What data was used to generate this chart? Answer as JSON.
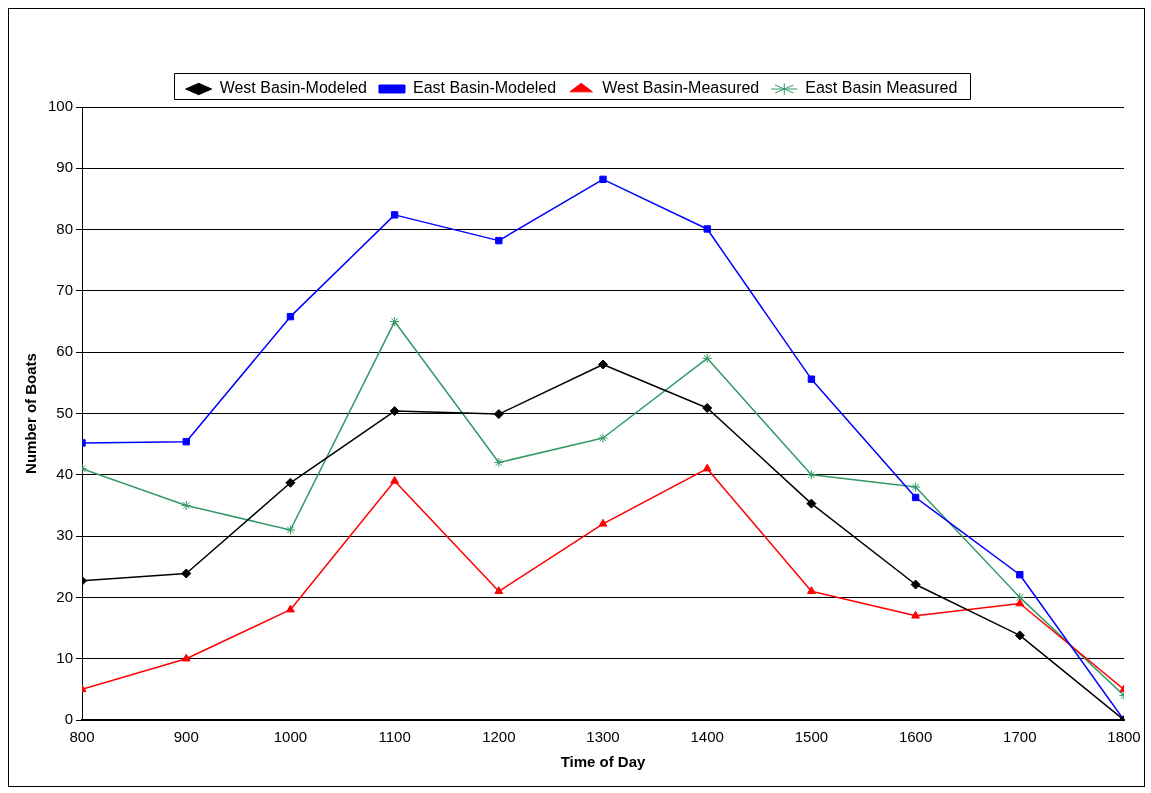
{
  "chart_data": {
    "type": "line",
    "xlabel": "Time of Day",
    "ylabel": "Number of Boats",
    "x": [
      800,
      900,
      1000,
      1100,
      1200,
      1300,
      1400,
      1500,
      1600,
      1700,
      1800
    ],
    "xlim": [
      800,
      1800
    ],
    "xticks": [
      800,
      900,
      1000,
      1100,
      1200,
      1300,
      1400,
      1500,
      1600,
      1700,
      1800
    ],
    "ylim": [
      0,
      100
    ],
    "yticks": [
      0,
      10,
      20,
      30,
      40,
      50,
      60,
      70,
      80,
      90,
      100
    ],
    "grid": "y",
    "legend": "top",
    "series": [
      {
        "name": "West Basin-Modeled",
        "color": "#000000",
        "marker": "diamond",
        "values": [
          22.7,
          23.9,
          38.7,
          50.4,
          49.9,
          58,
          50.9,
          35.3,
          22.1,
          13.8,
          0
        ]
      },
      {
        "name": "East Basin-Modeled",
        "color": "#0000ff",
        "marker": "square",
        "values": [
          45.2,
          45.4,
          65.8,
          82.4,
          78.2,
          88.2,
          80.1,
          55.6,
          36.3,
          23.7,
          0
        ]
      },
      {
        "name": "West Basin-Measured",
        "color": "#ff0000",
        "marker": "triangle",
        "values": [
          5,
          10,
          18,
          39,
          21,
          32,
          41,
          21,
          17,
          19,
          5
        ]
      },
      {
        "name": "East Basin Measured",
        "color": "#339966",
        "marker": "cross",
        "values": [
          41,
          35,
          31,
          65,
          42,
          46,
          59,
          40,
          38,
          20,
          4
        ]
      }
    ]
  }
}
